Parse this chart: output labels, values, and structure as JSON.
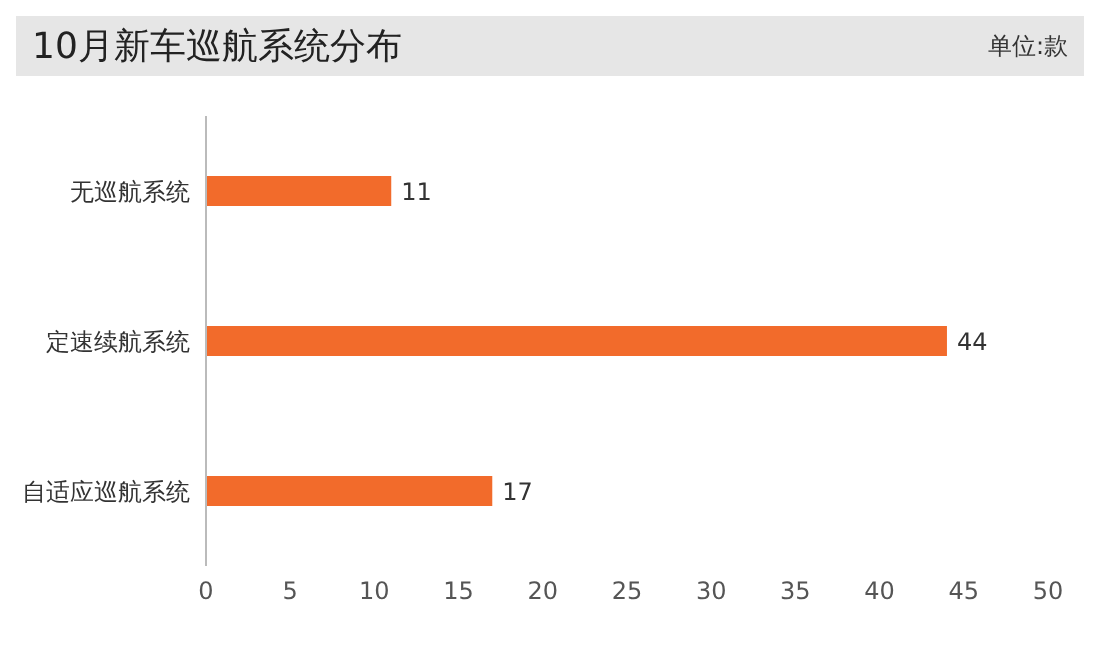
{
  "chart_data": {
    "type": "bar",
    "orientation": "horizontal",
    "title": "10月新车巡航系统分布",
    "annotations": [
      "单位:款"
    ],
    "categories": [
      "无巡航系统",
      "定速续航系统",
      "自适应巡航系统"
    ],
    "values": [
      11,
      44,
      17
    ],
    "color": "#f26b2b",
    "data_labels": true,
    "xlim": [
      0,
      50
    ],
    "xticks": [
      0,
      5,
      10,
      15,
      20,
      25,
      30,
      35,
      40,
      45,
      50
    ]
  }
}
